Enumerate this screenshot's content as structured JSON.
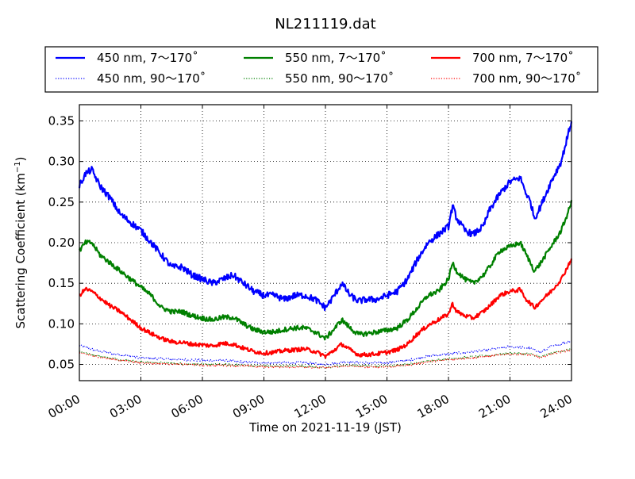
{
  "chart_data": {
    "type": "line",
    "title": "NL211119.dat",
    "xlabel": "Time on 2021-11-19 (JST)",
    "ylabel_main": "Scattering Coefficient (km",
    "ylabel_sup": "−1",
    "ylabel_close": ")",
    "x_unit": "hours",
    "xlim": [
      0,
      24
    ],
    "ylim": [
      0.03,
      0.37
    ],
    "grid": true,
    "legend_position": "above-plot",
    "x_ticks": [
      {
        "value": 0,
        "label": "00:00"
      },
      {
        "value": 3,
        "label": "03:00"
      },
      {
        "value": 6,
        "label": "06:00"
      },
      {
        "value": 9,
        "label": "09:00"
      },
      {
        "value": 12,
        "label": "12:00"
      },
      {
        "value": 15,
        "label": "15:00"
      },
      {
        "value": 18,
        "label": "18:00"
      },
      {
        "value": 21,
        "label": "21:00"
      },
      {
        "value": 24,
        "label": "24:00"
      }
    ],
    "y_ticks": [
      {
        "value": 0.05,
        "label": "0.05"
      },
      {
        "value": 0.1,
        "label": "0.10"
      },
      {
        "value": 0.15,
        "label": "0.15"
      },
      {
        "value": 0.2,
        "label": "0.20"
      },
      {
        "value": 0.25,
        "label": "0.25"
      },
      {
        "value": 0.3,
        "label": "0.30"
      },
      {
        "value": 0.35,
        "label": "0.35"
      }
    ],
    "series": [
      {
        "name": "450 nm, 7～170˚",
        "color": "#0000ff",
        "dash": "solid",
        "noise": 0.004,
        "points": [
          [
            0,
            0.27
          ],
          [
            0.3,
            0.285
          ],
          [
            0.6,
            0.29
          ],
          [
            1.0,
            0.27
          ],
          [
            1.5,
            0.255
          ],
          [
            2,
            0.235
          ],
          [
            2.5,
            0.225
          ],
          [
            3,
            0.215
          ],
          [
            3.5,
            0.2
          ],
          [
            4,
            0.185
          ],
          [
            4.5,
            0.17
          ],
          [
            5,
            0.17
          ],
          [
            5.5,
            0.16
          ],
          [
            6,
            0.155
          ],
          [
            6.5,
            0.15
          ],
          [
            7,
            0.155
          ],
          [
            7.5,
            0.16
          ],
          [
            8,
            0.15
          ],
          [
            8.5,
            0.14
          ],
          [
            9,
            0.135
          ],
          [
            9.5,
            0.135
          ],
          [
            10,
            0.13
          ],
          [
            10.5,
            0.135
          ],
          [
            11,
            0.135
          ],
          [
            11.5,
            0.13
          ],
          [
            12,
            0.12
          ],
          [
            12.3,
            0.13
          ],
          [
            12.8,
            0.15
          ],
          [
            13.2,
            0.135
          ],
          [
            13.6,
            0.128
          ],
          [
            14,
            0.13
          ],
          [
            14.5,
            0.13
          ],
          [
            15,
            0.135
          ],
          [
            15.5,
            0.14
          ],
          [
            16,
            0.155
          ],
          [
            16.5,
            0.18
          ],
          [
            17,
            0.2
          ],
          [
            17.5,
            0.21
          ],
          [
            18,
            0.22
          ],
          [
            18.2,
            0.245
          ],
          [
            18.4,
            0.23
          ],
          [
            18.8,
            0.215
          ],
          [
            19.2,
            0.21
          ],
          [
            19.7,
            0.22
          ],
          [
            20,
            0.24
          ],
          [
            20.5,
            0.26
          ],
          [
            21,
            0.275
          ],
          [
            21.5,
            0.28
          ],
          [
            21.8,
            0.26
          ],
          [
            22,
            0.25
          ],
          [
            22.2,
            0.23
          ],
          [
            22.5,
            0.245
          ],
          [
            23,
            0.275
          ],
          [
            23.5,
            0.3
          ],
          [
            23.8,
            0.33
          ],
          [
            24,
            0.35
          ]
        ]
      },
      {
        "name": "450 nm, 90～170˚",
        "color": "#0000ff",
        "dash": "dotted",
        "noise": 0.0015,
        "points": [
          [
            0,
            0.073
          ],
          [
            1,
            0.066
          ],
          [
            2,
            0.062
          ],
          [
            3,
            0.058
          ],
          [
            4,
            0.057
          ],
          [
            5,
            0.056
          ],
          [
            6,
            0.055
          ],
          [
            7,
            0.055
          ],
          [
            8,
            0.053
          ],
          [
            9,
            0.052
          ],
          [
            10,
            0.052
          ],
          [
            11,
            0.052
          ],
          [
            12,
            0.05
          ],
          [
            13,
            0.053
          ],
          [
            14,
            0.052
          ],
          [
            15,
            0.052
          ],
          [
            16,
            0.055
          ],
          [
            17,
            0.06
          ],
          [
            18,
            0.063
          ],
          [
            19,
            0.065
          ],
          [
            20,
            0.068
          ],
          [
            21,
            0.072
          ],
          [
            22,
            0.07
          ],
          [
            22.5,
            0.065
          ],
          [
            23,
            0.072
          ],
          [
            24,
            0.079
          ]
        ]
      },
      {
        "name": "550 nm, 7～170˚",
        "color": "#008000",
        "dash": "solid",
        "noise": 0.003,
        "points": [
          [
            0,
            0.19
          ],
          [
            0.3,
            0.2
          ],
          [
            0.6,
            0.2
          ],
          [
            1,
            0.185
          ],
          [
            1.5,
            0.175
          ],
          [
            2,
            0.165
          ],
          [
            2.5,
            0.155
          ],
          [
            3,
            0.145
          ],
          [
            3.5,
            0.135
          ],
          [
            4,
            0.12
          ],
          [
            4.5,
            0.115
          ],
          [
            5,
            0.115
          ],
          [
            5.5,
            0.11
          ],
          [
            6,
            0.107
          ],
          [
            6.5,
            0.105
          ],
          [
            7,
            0.108
          ],
          [
            7.5,
            0.108
          ],
          [
            8,
            0.1
          ],
          [
            8.5,
            0.093
          ],
          [
            9,
            0.09
          ],
          [
            9.5,
            0.09
          ],
          [
            10,
            0.093
          ],
          [
            10.5,
            0.095
          ],
          [
            11,
            0.095
          ],
          [
            11.5,
            0.09
          ],
          [
            12,
            0.082
          ],
          [
            12.3,
            0.09
          ],
          [
            12.8,
            0.105
          ],
          [
            13.2,
            0.095
          ],
          [
            13.6,
            0.087
          ],
          [
            14,
            0.088
          ],
          [
            14.5,
            0.09
          ],
          [
            15,
            0.092
          ],
          [
            15.5,
            0.095
          ],
          [
            16,
            0.105
          ],
          [
            16.5,
            0.12
          ],
          [
            17,
            0.135
          ],
          [
            17.5,
            0.14
          ],
          [
            18,
            0.155
          ],
          [
            18.2,
            0.175
          ],
          [
            18.4,
            0.165
          ],
          [
            18.8,
            0.155
          ],
          [
            19.2,
            0.15
          ],
          [
            19.7,
            0.16
          ],
          [
            20,
            0.17
          ],
          [
            20.5,
            0.19
          ],
          [
            21,
            0.195
          ],
          [
            21.5,
            0.2
          ],
          [
            21.8,
            0.185
          ],
          [
            22,
            0.175
          ],
          [
            22.2,
            0.165
          ],
          [
            22.5,
            0.175
          ],
          [
            23,
            0.195
          ],
          [
            23.5,
            0.215
          ],
          [
            23.8,
            0.235
          ],
          [
            24,
            0.25
          ]
        ]
      },
      {
        "name": "550 nm, 90～170˚",
        "color": "#008000",
        "dash": "dotted",
        "noise": 0.0012,
        "points": [
          [
            0,
            0.066
          ],
          [
            1,
            0.06
          ],
          [
            2,
            0.056
          ],
          [
            3,
            0.053
          ],
          [
            4,
            0.052
          ],
          [
            5,
            0.051
          ],
          [
            6,
            0.05
          ],
          [
            7,
            0.05
          ],
          [
            8,
            0.049
          ],
          [
            9,
            0.048
          ],
          [
            10,
            0.048
          ],
          [
            11,
            0.048
          ],
          [
            12,
            0.046
          ],
          [
            13,
            0.049
          ],
          [
            14,
            0.048
          ],
          [
            15,
            0.048
          ],
          [
            16,
            0.05
          ],
          [
            17,
            0.054
          ],
          [
            18,
            0.057
          ],
          [
            19,
            0.059
          ],
          [
            20,
            0.061
          ],
          [
            21,
            0.064
          ],
          [
            22,
            0.063
          ],
          [
            22.5,
            0.059
          ],
          [
            23,
            0.064
          ],
          [
            24,
            0.069
          ]
        ]
      },
      {
        "name": "700 nm, 7～170˚",
        "color": "#ff0000",
        "dash": "solid",
        "noise": 0.0025,
        "points": [
          [
            0,
            0.135
          ],
          [
            0.3,
            0.143
          ],
          [
            0.6,
            0.14
          ],
          [
            1,
            0.132
          ],
          [
            1.5,
            0.122
          ],
          [
            2,
            0.115
          ],
          [
            2.5,
            0.105
          ],
          [
            3,
            0.095
          ],
          [
            3.5,
            0.088
          ],
          [
            4,
            0.082
          ],
          [
            4.5,
            0.078
          ],
          [
            5,
            0.077
          ],
          [
            5.5,
            0.075
          ],
          [
            6,
            0.074
          ],
          [
            6.5,
            0.073
          ],
          [
            7,
            0.076
          ],
          [
            7.5,
            0.075
          ],
          [
            8,
            0.07
          ],
          [
            8.5,
            0.066
          ],
          [
            9,
            0.064
          ],
          [
            9.5,
            0.065
          ],
          [
            10,
            0.067
          ],
          [
            10.5,
            0.068
          ],
          [
            11,
            0.069
          ],
          [
            11.5,
            0.066
          ],
          [
            12,
            0.06
          ],
          [
            12.3,
            0.065
          ],
          [
            12.8,
            0.075
          ],
          [
            13.2,
            0.068
          ],
          [
            13.6,
            0.062
          ],
          [
            14,
            0.062
          ],
          [
            14.5,
            0.063
          ],
          [
            15,
            0.065
          ],
          [
            15.5,
            0.068
          ],
          [
            16,
            0.075
          ],
          [
            16.5,
            0.088
          ],
          [
            17,
            0.098
          ],
          [
            17.5,
            0.105
          ],
          [
            18,
            0.112
          ],
          [
            18.2,
            0.125
          ],
          [
            18.4,
            0.115
          ],
          [
            18.8,
            0.11
          ],
          [
            19.2,
            0.107
          ],
          [
            19.7,
            0.115
          ],
          [
            20,
            0.122
          ],
          [
            20.5,
            0.135
          ],
          [
            21,
            0.14
          ],
          [
            21.5,
            0.142
          ],
          [
            21.8,
            0.13
          ],
          [
            22,
            0.125
          ],
          [
            22.2,
            0.12
          ],
          [
            22.5,
            0.128
          ],
          [
            23,
            0.14
          ],
          [
            23.5,
            0.155
          ],
          [
            23.8,
            0.17
          ],
          [
            24,
            0.18
          ]
        ]
      },
      {
        "name": "700 nm, 90～170˚",
        "color": "#ff0000",
        "dash": "dotted",
        "noise": 0.0012,
        "points": [
          [
            0,
            0.064
          ],
          [
            1,
            0.059
          ],
          [
            2,
            0.055
          ],
          [
            3,
            0.052
          ],
          [
            4,
            0.051
          ],
          [
            5,
            0.05
          ],
          [
            6,
            0.049
          ],
          [
            7,
            0.049
          ],
          [
            8,
            0.048
          ],
          [
            9,
            0.047
          ],
          [
            10,
            0.047
          ],
          [
            11,
            0.047
          ],
          [
            12,
            0.046
          ],
          [
            13,
            0.048
          ],
          [
            14,
            0.047
          ],
          [
            15,
            0.047
          ],
          [
            16,
            0.049
          ],
          [
            17,
            0.053
          ],
          [
            18,
            0.056
          ],
          [
            19,
            0.058
          ],
          [
            20,
            0.06
          ],
          [
            21,
            0.063
          ],
          [
            22,
            0.062
          ],
          [
            22.5,
            0.058
          ],
          [
            23,
            0.063
          ],
          [
            24,
            0.068
          ]
        ]
      }
    ]
  }
}
